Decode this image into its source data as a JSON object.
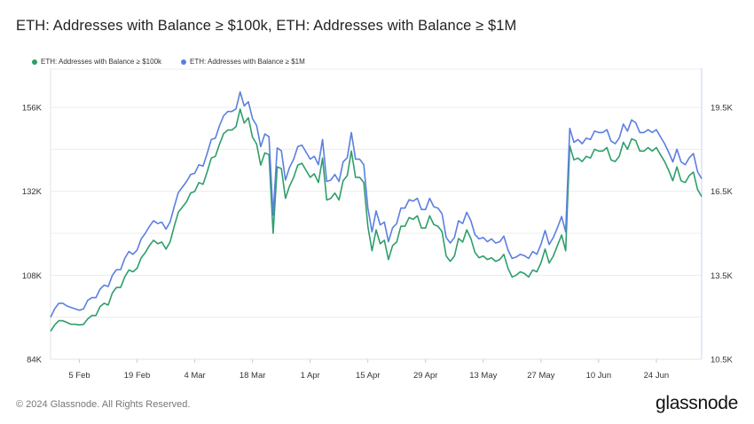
{
  "chart_data": {
    "type": "line",
    "title": "ETH: Addresses with Balance ≥ $100k, ETH: Addresses with Balance ≥ $1M",
    "x_tick_labels": [
      "5 Feb",
      "19 Feb",
      "4 Mar",
      "18 Mar",
      "1 Apr",
      "15 Apr",
      "29 Apr",
      "13 May",
      "27 May",
      "10 Jun",
      "24 Jun"
    ],
    "x": [
      "2024-01-29",
      "2024-01-30",
      "2024-01-31",
      "2024-02-01",
      "2024-02-02",
      "2024-02-03",
      "2024-02-04",
      "2024-02-05",
      "2024-02-06",
      "2024-02-07",
      "2024-02-08",
      "2024-02-09",
      "2024-02-10",
      "2024-02-11",
      "2024-02-12",
      "2024-02-13",
      "2024-02-14",
      "2024-02-15",
      "2024-02-16",
      "2024-02-17",
      "2024-02-18",
      "2024-02-19",
      "2024-02-20",
      "2024-02-21",
      "2024-02-22",
      "2024-02-23",
      "2024-02-24",
      "2024-02-25",
      "2024-02-26",
      "2024-02-27",
      "2024-02-28",
      "2024-02-29",
      "2024-03-01",
      "2024-03-02",
      "2024-03-03",
      "2024-03-04",
      "2024-03-05",
      "2024-03-06",
      "2024-03-07",
      "2024-03-08",
      "2024-03-09",
      "2024-03-10",
      "2024-03-11",
      "2024-03-12",
      "2024-03-13",
      "2024-03-14",
      "2024-03-15",
      "2024-03-16",
      "2024-03-17",
      "2024-03-18",
      "2024-03-19",
      "2024-03-20",
      "2024-03-21",
      "2024-03-22",
      "2024-03-23",
      "2024-03-24",
      "2024-03-25",
      "2024-03-26",
      "2024-03-27",
      "2024-03-28",
      "2024-03-29",
      "2024-03-30",
      "2024-03-31",
      "2024-04-01",
      "2024-04-02",
      "2024-04-03",
      "2024-04-04",
      "2024-04-05",
      "2024-04-06",
      "2024-04-07",
      "2024-04-08",
      "2024-04-09",
      "2024-04-10",
      "2024-04-11",
      "2024-04-12",
      "2024-04-13",
      "2024-04-14",
      "2024-04-15",
      "2024-04-16",
      "2024-04-17",
      "2024-04-18",
      "2024-04-19",
      "2024-04-20",
      "2024-04-21",
      "2024-04-22",
      "2024-04-23",
      "2024-04-24",
      "2024-04-25",
      "2024-04-26",
      "2024-04-27",
      "2024-04-28",
      "2024-04-29",
      "2024-04-30",
      "2024-05-01",
      "2024-05-02",
      "2024-05-03",
      "2024-05-04",
      "2024-05-05",
      "2024-05-06",
      "2024-05-07",
      "2024-05-08",
      "2024-05-09",
      "2024-05-10",
      "2024-05-11",
      "2024-05-12",
      "2024-05-13",
      "2024-05-14",
      "2024-05-15",
      "2024-05-16",
      "2024-05-17",
      "2024-05-18",
      "2024-05-19",
      "2024-05-20",
      "2024-05-21",
      "2024-05-22",
      "2024-05-23",
      "2024-05-24",
      "2024-05-25",
      "2024-05-26",
      "2024-05-27",
      "2024-05-28",
      "2024-05-29",
      "2024-05-30",
      "2024-05-31",
      "2024-06-01",
      "2024-06-02",
      "2024-06-03",
      "2024-06-04",
      "2024-06-05",
      "2024-06-06",
      "2024-06-07",
      "2024-06-08",
      "2024-06-09",
      "2024-06-10",
      "2024-06-11",
      "2024-06-12",
      "2024-06-13",
      "2024-06-14",
      "2024-06-15",
      "2024-06-16",
      "2024-06-17",
      "2024-06-18",
      "2024-06-19",
      "2024-06-20",
      "2024-06-21",
      "2024-06-22",
      "2024-06-23",
      "2024-06-24",
      "2024-06-25",
      "2024-06-26",
      "2024-06-27",
      "2024-06-28",
      "2024-06-29",
      "2024-06-30",
      "2024-07-01",
      "2024-07-02",
      "2024-07-03",
      "2024-07-04",
      "2024-07-05"
    ],
    "y_left_ticks": [
      "84K",
      "108K",
      "132K",
      "156K"
    ],
    "y_right_ticks": [
      "10.5K",
      "13.5K",
      "16.5K",
      "19.5K"
    ],
    "ylim_left": [
      84000,
      156000
    ],
    "ylim_right": [
      10500,
      19500
    ],
    "legend_position": "top-left",
    "grid": true,
    "series": [
      {
        "name": "ETH: Addresses with Balance ≥ $100k",
        "axis": "left",
        "color": "#2e9e6b",
        "values": [
          92000,
          93800,
          95000,
          95000,
          94500,
          94000,
          94000,
          93800,
          94000,
          95500,
          96500,
          96500,
          99000,
          100000,
          99500,
          103000,
          104500,
          104500,
          107500,
          109500,
          109000,
          110000,
          113000,
          114500,
          116500,
          118000,
          117000,
          117500,
          115500,
          117500,
          122000,
          126000,
          127500,
          129000,
          131500,
          132000,
          134500,
          134000,
          137500,
          141500,
          142000,
          145500,
          148500,
          149500,
          149500,
          150500,
          155500,
          151500,
          153000,
          147500,
          145500,
          139500,
          143000,
          142500,
          120000,
          139000,
          138500,
          130000,
          133500,
          136000,
          139500,
          140000,
          138000,
          136000,
          137000,
          134500,
          141500,
          129500,
          130000,
          131500,
          129500,
          135000,
          136500,
          143500,
          136000,
          136000,
          134500,
          122000,
          115000,
          121000,
          117000,
          118000,
          112500,
          116500,
          117500,
          122000,
          122000,
          124500,
          124000,
          125000,
          121500,
          121500,
          125000,
          122500,
          122000,
          120500,
          113500,
          112000,
          113500,
          118500,
          117500,
          121000,
          118500,
          114500,
          113000,
          113500,
          112500,
          113000,
          112000,
          112500,
          114000,
          110000,
          107500,
          108000,
          109000,
          108500,
          107500,
          109500,
          109000,
          111500,
          115500,
          111500,
          113500,
          116500,
          119500,
          115000,
          145000,
          141000,
          141500,
          140500,
          142000,
          141500,
          144000,
          143500,
          143500,
          144500,
          141000,
          140500,
          142000,
          146000,
          144000,
          147000,
          146500,
          143500,
          143500,
          144500,
          143500,
          144500,
          142500,
          140500,
          138000,
          135000,
          139000,
          135000,
          134500,
          136500,
          137500,
          132500,
          130500
        ],
        "values_right": [
          11500,
          11700,
          11850,
          11850,
          11800,
          11750,
          11750,
          11720,
          11750,
          11950,
          12050,
          12050,
          12350,
          12500,
          12450,
          12850,
          13050,
          13050,
          13450,
          13700,
          13600,
          13750,
          14150,
          14300,
          14550,
          14750,
          14650,
          14700,
          14450,
          14700,
          15250,
          15750,
          15950,
          16150,
          16450,
          16500,
          16800,
          16750,
          17200,
          17700,
          17750,
          18200,
          18550,
          18700,
          18700,
          18800,
          19450,
          18950,
          19100,
          18450,
          18200,
          17450,
          17900,
          17800,
          15000,
          17400,
          17300,
          16250,
          16700,
          17000,
          17450,
          17500,
          17250,
          17000,
          17100,
          16800,
          17700,
          16200,
          16250,
          16450,
          16200,
          16900,
          17050,
          17950,
          17000,
          17000,
          16800,
          15250,
          14400,
          15150,
          14650,
          14750,
          14050,
          14550,
          14700,
          15250,
          15250,
          15550,
          15500,
          15600,
          15200,
          15200,
          15600,
          15300,
          15250,
          15050,
          14200,
          14000,
          14200,
          14800,
          14700,
          15100,
          14800,
          14300,
          14150,
          14200,
          14050,
          14150,
          14000,
          14050,
          14250,
          13750,
          13450,
          13500,
          13600,
          13550,
          13450,
          13700,
          13600,
          13950,
          14450,
          13950,
          14200,
          14550,
          14950,
          14400,
          18100,
          17600,
          17700,
          17550,
          17750,
          17700,
          18000,
          17950,
          17950,
          18050,
          17650,
          17550,
          17750,
          18250,
          18000,
          18400,
          18300,
          17950,
          17950,
          18050,
          17950,
          18050,
          17800,
          17550,
          17250,
          16900,
          17350,
          16900,
          16800,
          17050,
          17200,
          16550,
          16300
        ]
      },
      {
        "name": "ETH: Addresses with Balance ≥ $1M",
        "axis": "right",
        "color": "#5b7fe0",
        "values": [
          12000,
          12300,
          12500,
          12500,
          12400,
          12350,
          12300,
          12250,
          12300,
          12600,
          12700,
          12700,
          13000,
          13150,
          13100,
          13500,
          13700,
          13700,
          14100,
          14350,
          14250,
          14400,
          14800,
          15000,
          15250,
          15450,
          15350,
          15400,
          15150,
          15400,
          15950,
          16450,
          16650,
          16850,
          17100,
          17150,
          17450,
          17400,
          17850,
          18350,
          18400,
          18850,
          19200,
          19350,
          19350,
          19450,
          20050,
          19550,
          19700,
          19100,
          18850,
          18100,
          18550,
          18450,
          15650,
          18050,
          17950,
          16900,
          17350,
          17650,
          18100,
          18150,
          17900,
          17650,
          17750,
          17450,
          18350,
          16850,
          16900,
          17100,
          16850,
          17550,
          17700,
          18600,
          17650,
          17650,
          17450,
          15900,
          15050,
          15800,
          15300,
          15400,
          14700,
          15200,
          15350,
          15900,
          15900,
          16200,
          16150,
          16250,
          15850,
          15850,
          16250,
          15950,
          15900,
          15700,
          14850,
          14650,
          14850,
          15450,
          15350,
          15750,
          15450,
          14950,
          14800,
          14850,
          14700,
          14800,
          14650,
          14700,
          14900,
          14400,
          14100,
          14150,
          14250,
          14200,
          14100,
          14350,
          14250,
          14600,
          15100,
          14600,
          14850,
          15200,
          15600,
          15050,
          18750,
          18250,
          18350,
          18200,
          18400,
          18350,
          18650,
          18600,
          18600,
          18700,
          18300,
          18200,
          18400,
          18900,
          18650,
          19050,
          18950,
          18600,
          18600,
          18700,
          18600,
          18700,
          18450,
          18200,
          17900,
          17550,
          18000,
          17550,
          17450,
          17700,
          17850,
          17200,
          16950
        ]
      }
    ]
  },
  "header": {
    "title": "ETH: Addresses with Balance ≥ $100k, ETH: Addresses with Balance ≥ $1M"
  },
  "legend": {
    "item1": "ETH: Addresses with Balance ≥ $100k",
    "item2": "ETH: Addresses with Balance ≥ $1M",
    "color1": "#2e9e6b",
    "color2": "#5b7fe0"
  },
  "footer": {
    "copyright": "© 2024 Glassnode. All Rights Reserved.",
    "brand": "glassnode"
  }
}
